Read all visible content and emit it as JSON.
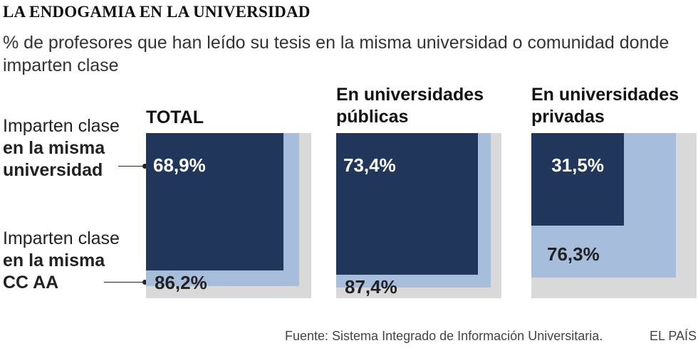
{
  "header": {
    "title": "LA ENDOGAMIA EN LA UNIVERSIDAD",
    "subtitle": "% de profesores que han leído su tesis en la misma universidad o comunidad donde imparten clase"
  },
  "row_labels": {
    "university": {
      "line1": "Imparten clase",
      "line2": "en la misma",
      "line3": "universidad"
    },
    "community": {
      "line1": "Imparten clase",
      "line2": "en la misma",
      "line3": "CC AA"
    }
  },
  "footer": {
    "source": "Fuente: Sistema Integrado de Información Universitaria.",
    "brand": "EL PAÍS"
  },
  "colors": {
    "university": "#20375b",
    "community": "#a6bedc",
    "max": "#d9d9d9"
  },
  "chart_data": {
    "type": "nested-square",
    "unit": "%",
    "title": "LA ENDOGAMIA EN LA UNIVERSIDAD",
    "subtitle": "% de profesores que han leído su tesis en la misma universidad o comunidad donde imparten clase",
    "series": [
      {
        "name": "Imparten clase en la misma universidad",
        "key": "univ"
      },
      {
        "name": "Imparten clase en la misma CC AA",
        "key": "cc"
      }
    ],
    "panels": [
      {
        "title_line1": "TOTAL",
        "title_line2": "",
        "univ": 68.9,
        "cc": 86.2,
        "univ_label": "68,9%",
        "cc_label": "86,2%"
      },
      {
        "title_line1": "En universidades",
        "title_line2": "públicas",
        "univ": 73.4,
        "cc": 87.4,
        "univ_label": "73,4%",
        "cc_label": "87,4%"
      },
      {
        "title_line1": "En universidades",
        "title_line2": "privadas",
        "univ": 31.5,
        "cc": 76.3,
        "univ_label": "31,5%",
        "cc_label": "76,3%"
      }
    ]
  }
}
